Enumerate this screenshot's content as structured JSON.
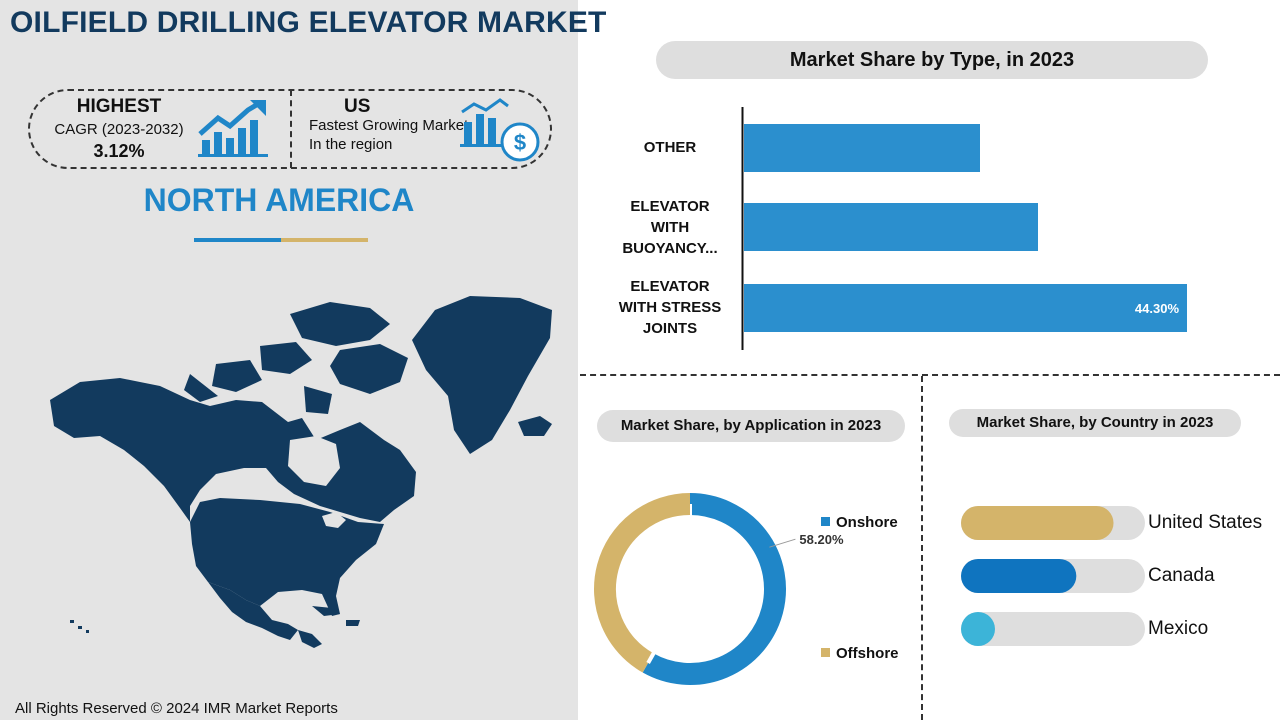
{
  "title": "OILFIELD DRILLING ELEVATOR MARKET",
  "kpi": {
    "highest_label": "HIGHEST",
    "cagr_label": "CAGR (2023-2032)",
    "cagr_value": "3.12%",
    "fastest_label": "US",
    "fastest_desc": "Fastest Growing Market In the region",
    "growth_icon": "growth-chart-icon",
    "market_icon": "dollar-bar-chart-icon"
  },
  "region": "NORTH AMERICA",
  "footer": "All Rights Reserved © 2024 IMR Market Reports",
  "colors": {
    "navy": "#123a5e",
    "blue": "#1f86c8",
    "gold": "#d4b46a",
    "bar_blue": "#2b8fce",
    "canada_blue": "#0f74bf",
    "mexico_blue": "#3cb4d8",
    "track": "#dedede"
  },
  "chart_data": [
    {
      "type": "bar",
      "orientation": "horizontal",
      "title": "Market Share by Type,  in 2023",
      "categories": [
        "OTHER",
        "ELEVATOR WITH BUOYANCY...",
        "ELEVATOR WITH STRESS JOINTS"
      ],
      "category_lines": [
        [
          "OTHER"
        ],
        [
          "ELEVATOR",
          "WITH",
          "BUOYANCY..."
        ],
        [
          "ELEVATOR",
          "WITH STRESS",
          "JOINTS"
        ]
      ],
      "values": [
        23.6,
        29.4,
        44.3
      ],
      "labels": [
        "",
        "",
        "44.30%"
      ],
      "xlim": [
        0,
        50
      ],
      "grid": false
    },
    {
      "type": "pie",
      "donut": true,
      "title": "Market Share, by Application in 2023",
      "categories": [
        "Onshore",
        "Offshore"
      ],
      "values": [
        58.2,
        41.8
      ],
      "labels": [
        "58.20%",
        ""
      ],
      "colors": [
        "#1f86c8",
        "#d4b46a"
      ],
      "legend": "right"
    },
    {
      "type": "bar",
      "orientation": "horizontal",
      "title": "Market Share, by Country in 2023",
      "categories": [
        "United States",
        "Canada",
        "Mexico"
      ],
      "values": [
        0.82,
        0.62,
        0.14
      ],
      "colors": [
        "#d4b46a",
        "#0f74bf",
        "#3cb4d8"
      ],
      "xlim": [
        0,
        1
      ]
    }
  ]
}
